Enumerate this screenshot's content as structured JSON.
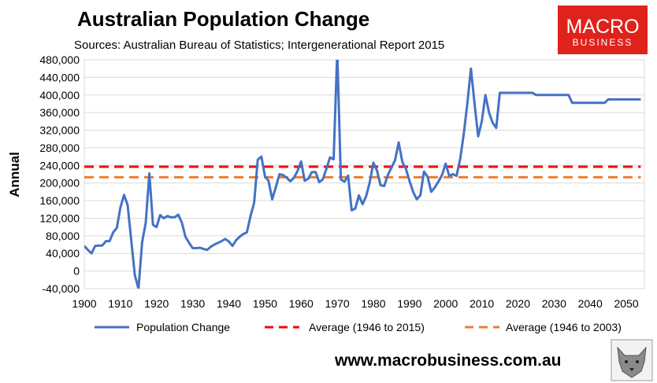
{
  "header": {
    "title": "Australian Population Change",
    "subtitle": "Sources: Australian Bureau of Statistics; Intergenerational Report 2015"
  },
  "logo": {
    "line1": "MACRO",
    "line2": "BUSINESS",
    "bg_color": "#e0221c"
  },
  "footer": {
    "url": "www.macrobusiness.com.au",
    "wolf_icon": "wolf-logo-icon"
  },
  "colors": {
    "series": "#4472c4",
    "avg_2015": "#ff0000",
    "avg_2003": "#ed7d31",
    "grid": "#d9d9d9"
  },
  "chart_data": {
    "type": "line",
    "ylabel": "Annual",
    "xlabel": "",
    "xlim": [
      1900,
      2055
    ],
    "ylim": [
      -40000,
      480000
    ],
    "x_ticks": [
      1900,
      1910,
      1920,
      1930,
      1940,
      1950,
      1960,
      1970,
      1980,
      1990,
      2000,
      2010,
      2020,
      2030,
      2040,
      2050
    ],
    "y_ticks": [
      -40000,
      0,
      40000,
      80000,
      120000,
      160000,
      200000,
      240000,
      280000,
      320000,
      360000,
      400000,
      440000,
      480000
    ],
    "y_tick_labels": [
      "-40,000",
      "0",
      "40,000",
      "80,000",
      "120,000",
      "160,000",
      "200,000",
      "240,000",
      "280,000",
      "320,000",
      "360,000",
      "400,000",
      "440,000",
      "480,000"
    ],
    "grid": "horizontal",
    "legend_position": "bottom",
    "series": [
      {
        "name": "Population Change",
        "style": "solid",
        "x": [
          1900,
          1901,
          1902,
          1903,
          1904,
          1905,
          1906,
          1907,
          1908,
          1909,
          1910,
          1911,
          1912,
          1913,
          1914,
          1915,
          1916,
          1917,
          1918,
          1919,
          1920,
          1921,
          1922,
          1923,
          1924,
          1925,
          1926,
          1927,
          1928,
          1929,
          1930,
          1931,
          1932,
          1933,
          1934,
          1935,
          1936,
          1937,
          1938,
          1939,
          1940,
          1941,
          1942,
          1943,
          1944,
          1945,
          1946,
          1947,
          1948,
          1949,
          1950,
          1951,
          1952,
          1953,
          1954,
          1955,
          1956,
          1957,
          1958,
          1959,
          1960,
          1961,
          1962,
          1963,
          1964,
          1965,
          1966,
          1967,
          1968,
          1969,
          1970,
          1971,
          1972,
          1973,
          1974,
          1975,
          1976,
          1977,
          1978,
          1979,
          1980,
          1981,
          1982,
          1983,
          1984,
          1985,
          1986,
          1987,
          1988,
          1989,
          1990,
          1991,
          1992,
          1993,
          1994,
          1995,
          1996,
          1997,
          1998,
          1999,
          2000,
          2001,
          2002,
          2003,
          2004,
          2005,
          2006,
          2007,
          2008,
          2009,
          2010,
          2011,
          2012,
          2013,
          2014,
          2015,
          2016,
          2020,
          2024,
          2025,
          2030,
          2034,
          2035,
          2040,
          2044,
          2045,
          2050,
          2054
        ],
        "values": [
          57000,
          48000,
          40000,
          57000,
          58000,
          58000,
          68000,
          68000,
          88000,
          98000,
          145000,
          173000,
          150000,
          70000,
          -10000,
          -40000,
          65000,
          110000,
          222000,
          105000,
          100000,
          127000,
          120000,
          125000,
          122000,
          122000,
          128000,
          110000,
          78000,
          64000,
          52000,
          52000,
          53000,
          50000,
          48000,
          55000,
          60000,
          64000,
          68000,
          73000,
          67000,
          57000,
          70000,
          78000,
          84000,
          88000,
          125000,
          155000,
          253000,
          260000,
          215000,
          205000,
          163000,
          190000,
          220000,
          218000,
          212000,
          204000,
          212000,
          227000,
          249000,
          205000,
          210000,
          225000,
          225000,
          202000,
          208000,
          232000,
          258000,
          254000,
          500000,
          208000,
          203000,
          217000,
          138000,
          142000,
          172000,
          152000,
          170000,
          202000,
          246000,
          228000,
          195000,
          193000,
          218000,
          235000,
          252000,
          292000,
          248000,
          232000,
          205000,
          180000,
          163000,
          172000,
          226000,
          214000,
          180000,
          190000,
          203000,
          218000,
          244000,
          216000,
          220000,
          216000,
          254000,
          310000,
          380000,
          460000,
          380000,
          306000,
          340000,
          400000,
          360000,
          337000,
          325000,
          405000,
          405000,
          405000,
          405000,
          400000,
          400000,
          400000,
          382000,
          382000,
          382000,
          390000,
          390000,
          390000
        ]
      },
      {
        "name": "Average (1946 to 2015)",
        "style": "dashed",
        "x": [
          1900,
          2054
        ],
        "values": [
          237000,
          237000
        ]
      },
      {
        "name": "Average (1946 to 2003)",
        "style": "dashed",
        "x": [
          1900,
          2054
        ],
        "values": [
          213000,
          213000
        ]
      }
    ]
  }
}
